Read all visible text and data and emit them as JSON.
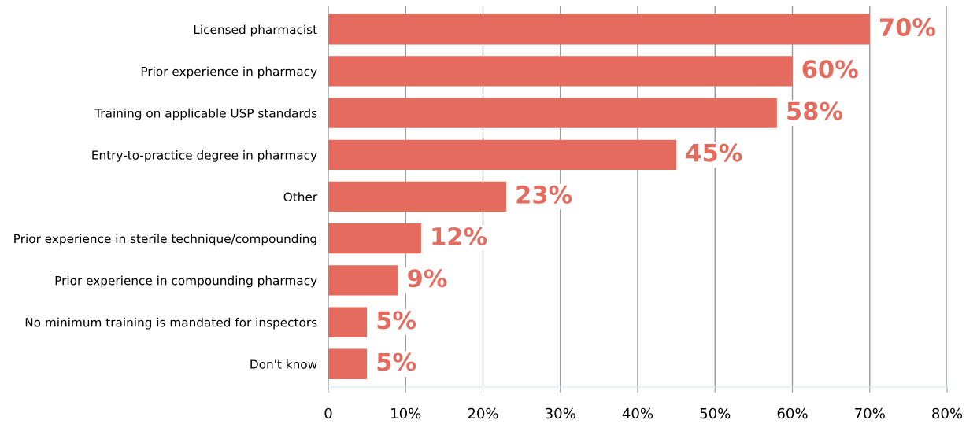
{
  "chart_data": {
    "type": "bar",
    "orientation": "horizontal",
    "categories": [
      "Licensed pharmacist",
      "Prior experience in pharmacy",
      "Training on applicable USP standards",
      "Entry-to-practice degree in pharmacy",
      "Other",
      "Prior experience in sterile technique/compounding",
      "Prior experience in compounding pharmacy",
      "No minimum training is mandated for inspectors",
      "Don't know"
    ],
    "values": [
      70,
      60,
      58,
      45,
      23,
      12,
      9,
      5,
      5
    ],
    "value_labels": [
      "70%",
      "60%",
      "58%",
      "45%",
      "23%",
      "12%",
      "9%",
      "5%",
      "5%"
    ],
    "color": "#e46b5d",
    "xlim": [
      0,
      80
    ],
    "xticks": [
      0,
      {
        "value": 10,
        "label": "10%"
      },
      {
        "value": 20,
        "label": "20%"
      },
      {
        "value": 30,
        "label": "30%"
      },
      {
        "value": 40,
        "label": "40%"
      },
      {
        "value": 50,
        "label": "50%"
      },
      {
        "value": 60,
        "label": "60%"
      },
      {
        "value": 70,
        "label": "70%"
      },
      {
        "value": 80,
        "label": "80%"
      }
    ],
    "grid": "x"
  }
}
